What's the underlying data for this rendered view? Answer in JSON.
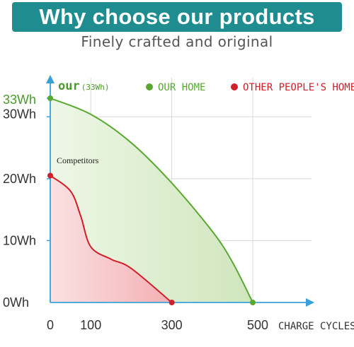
{
  "header": {
    "title": "Why choose our products",
    "subtitle": "Finely crafted and original",
    "banner_color": "#1f8d8f"
  },
  "chart_data": {
    "type": "area",
    "xlabel": "CHARGE CYCLES",
    "ylabel": "",
    "xlim": [
      0,
      500
    ],
    "ylim": [
      0,
      33
    ],
    "x_ticks": [
      "0",
      "100",
      "300",
      "500"
    ],
    "x_tick_values": [
      0,
      100,
      300,
      500
    ],
    "y_ticks": [
      "0Wh",
      "10Wh",
      "20Wh",
      "30Wh",
      "33Wh"
    ],
    "y_tick_values": [
      0,
      10,
      20,
      30,
      33
    ],
    "grid": true,
    "legend_position": "top",
    "series_label": {
      "name": "our",
      "detail": "(33Wh)"
    },
    "legend": [
      "OUR HOME",
      "OTHER PEOPLE'S HOME"
    ],
    "annotation": "Competitors",
    "series": [
      {
        "name": "OUR HOME",
        "color": "#5aa832",
        "fill": "#d7ebc8",
        "x": [
          0,
          100,
          200,
          300,
          400,
          450,
          500
        ],
        "y": [
          33,
          30.4,
          25.8,
          19.3,
          11.5,
          6.5,
          0
        ]
      },
      {
        "name": "OTHER PEOPLE'S HOME",
        "color": "#d0202a",
        "fill": "#f7c4c6",
        "x": [
          0,
          50,
          75,
          100,
          150,
          200,
          300
        ],
        "y": [
          20.5,
          18,
          14,
          9,
          7,
          5.5,
          0
        ]
      }
    ]
  }
}
